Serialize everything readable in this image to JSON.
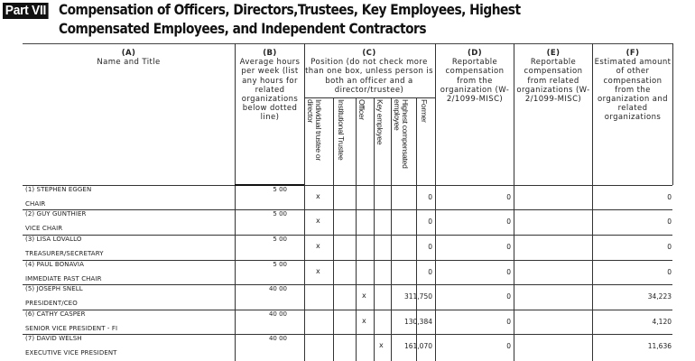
{
  "part": {
    "badge": "Part VII",
    "title": "Compensation of Officers, Directors,Trustees, Key Employees, Highest Compensated Employees, and Independent Contractors"
  },
  "columns": {
    "a": {
      "letter": "(A)",
      "label": "Name and Title"
    },
    "b": {
      "letter": "(B)",
      "label": "Average hours per week (list any hours for related organizations below dotted line)"
    },
    "c": {
      "letter": "(C)",
      "label": "Position (do not check more than one box, unless person is both an officer and a director/trustee)",
      "sub": [
        "Individual trustee or director",
        "Institutional Trustee",
        "Officer",
        "Key employee",
        "Highest compensated employee",
        "Former"
      ]
    },
    "d": {
      "letter": "(D)",
      "label": "Reportable compensation from the organization (W- 2/1099-MISC)"
    },
    "e": {
      "letter": "(E)",
      "label": "Reportable compensation from related organizations (W- 2/1099-MISC)"
    },
    "f": {
      "letter": "(F)",
      "label": "Estimated amount of other compensation from the organization and related organizations"
    }
  },
  "rows": [
    {
      "name": "(1) STEPHEN EGGEN",
      "title": "CHAIR",
      "hours": "5 00",
      "position": 0,
      "mark": "x",
      "d": "0",
      "e": "0",
      "f": "0"
    },
    {
      "name": "(2) GUY GUNTHIER",
      "title": "VICE CHAIR",
      "hours": "5 00",
      "position": 0,
      "mark": "x",
      "d": "0",
      "e": "0",
      "f": "0"
    },
    {
      "name": "(3) LISA LOVALLO",
      "title": "TREASURER/SECRETARY",
      "hours": "5 00",
      "position": 0,
      "mark": "x",
      "d": "0",
      "e": "0",
      "f": "0"
    },
    {
      "name": "(4) PAUL BONAVIA",
      "title": "IMMEDIATE PAST CHAIR",
      "hours": "5 00",
      "position": 0,
      "mark": "x",
      "d": "0",
      "e": "0",
      "f": "0"
    },
    {
      "name": "(5) JOSEPH SNELL",
      "title": "PRESIDENT/CEO",
      "hours": "40 00",
      "position": 2,
      "mark": "x",
      "d": "311,750",
      "e": "0",
      "f": "34,223"
    },
    {
      "name": "(6) CATHY CASPER",
      "title": "SENIOR VICE PRESIDENT - FI",
      "hours": "40 00",
      "position": 2,
      "mark": "x",
      "d": "130,384",
      "e": "0",
      "f": "4,120"
    },
    {
      "name": "(7) DAVID WELSH",
      "title": "EXECUTIVE VICE PRESIDENT",
      "hours": "40 00",
      "position": 3,
      "mark": "x",
      "d": "161,070",
      "e": "0",
      "f": "11,636"
    }
  ]
}
